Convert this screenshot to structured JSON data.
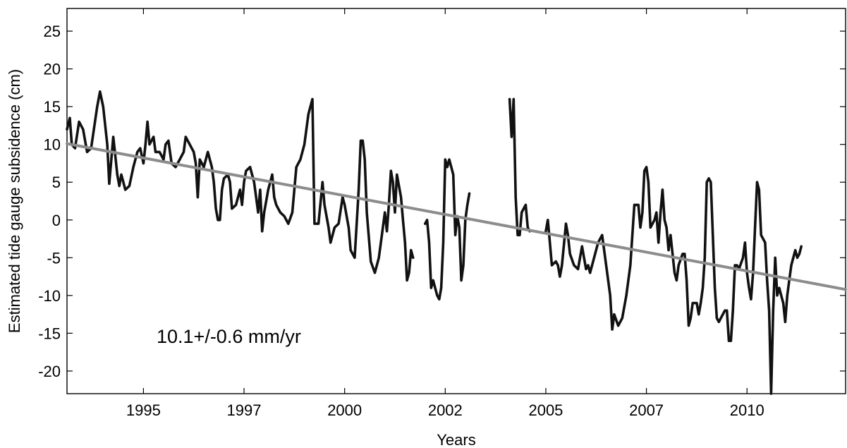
{
  "chart_data": {
    "type": "line",
    "title": "",
    "xlabel": "Years",
    "ylabel": "Estimated tide gauge subsidence (cm)",
    "xlim": [
      1993.1,
      2012.45
    ],
    "ylim": [
      -23,
      28
    ],
    "x_ticks": [
      1995,
      1997.5,
      2000,
      2002.5,
      2005,
      2007.5,
      2010
    ],
    "x_tick_labels": [
      "1995",
      "1997",
      "2000",
      "2002",
      "2005",
      "2007",
      "2010"
    ],
    "y_ticks": [
      25,
      20,
      15,
      10,
      5,
      0,
      -5,
      -10,
      -15,
      -20
    ],
    "y_tick_labels": [
      "25",
      "20",
      "15",
      "10",
      "5",
      "0",
      "-5",
      "-10",
      "-15",
      "-20"
    ],
    "grid": false,
    "annotation": "10.1+/-0.6 mm/yr",
    "series": [
      {
        "color": "#111111",
        "segments": [
          [
            [
              1993.1,
              12
            ],
            [
              1993.17,
              13.5
            ],
            [
              1993.22,
              10
            ],
            [
              1993.3,
              9.5
            ],
            [
              1993.4,
              13
            ],
            [
              1993.5,
              12
            ],
            [
              1993.6,
              9
            ],
            [
              1993.7,
              9.5
            ],
            [
              1993.85,
              15
            ],
            [
              1993.92,
              17
            ],
            [
              1994.0,
              15
            ],
            [
              1994.1,
              10
            ],
            [
              1994.15,
              4.8
            ],
            [
              1994.25,
              11
            ],
            [
              1994.3,
              8.5
            ],
            [
              1994.35,
              6
            ],
            [
              1994.4,
              4.5
            ],
            [
              1994.45,
              6
            ],
            [
              1994.5,
              5
            ],
            [
              1994.55,
              4
            ],
            [
              1994.65,
              4.5
            ],
            [
              1994.75,
              7
            ],
            [
              1994.85,
              9
            ],
            [
              1994.92,
              9.5
            ],
            [
              1995.0,
              7.5
            ],
            [
              1995.05,
              10
            ],
            [
              1995.1,
              13
            ],
            [
              1995.15,
              10
            ],
            [
              1995.25,
              11
            ],
            [
              1995.3,
              9
            ],
            [
              1995.4,
              9
            ],
            [
              1995.5,
              8
            ],
            [
              1995.55,
              10
            ],
            [
              1995.62,
              10.5
            ],
            [
              1995.7,
              7.5
            ],
            [
              1995.8,
              7
            ],
            [
              1995.9,
              8
            ],
            [
              1996.0,
              9
            ],
            [
              1996.05,
              11
            ],
            [
              1996.15,
              10
            ],
            [
              1996.25,
              9
            ],
            [
              1996.3,
              7.5
            ],
            [
              1996.35,
              3
            ],
            [
              1996.4,
              8
            ],
            [
              1996.5,
              7
            ],
            [
              1996.6,
              9
            ],
            [
              1996.7,
              7
            ],
            [
              1996.75,
              5
            ],
            [
              1996.8,
              1.5
            ],
            [
              1996.85,
              0
            ],
            [
              1996.9,
              0
            ],
            [
              1996.95,
              4
            ],
            [
              1997.0,
              5.5
            ],
            [
              1997.1,
              6
            ],
            [
              1997.15,
              5
            ],
            [
              1997.2,
              1.5
            ],
            [
              1997.3,
              2
            ],
            [
              1997.4,
              4
            ],
            [
              1997.45,
              2
            ],
            [
              1997.5,
              5
            ],
            [
              1997.55,
              6.5
            ],
            [
              1997.65,
              7
            ],
            [
              1997.75,
              5
            ],
            [
              1997.8,
              3
            ],
            [
              1997.85,
              1
            ],
            [
              1997.9,
              4
            ],
            [
              1997.95,
              -1.5
            ],
            [
              1998.0,
              1
            ],
            [
              1998.1,
              4
            ],
            [
              1998.2,
              6
            ],
            [
              1998.25,
              3
            ],
            [
              1998.3,
              2
            ],
            [
              1998.4,
              1
            ],
            [
              1998.5,
              0.5
            ],
            [
              1998.6,
              -0.5
            ],
            [
              1998.7,
              1
            ],
            [
              1998.8,
              7
            ],
            [
              1998.9,
              8
            ],
            [
              1999.0,
              10
            ],
            [
              1999.1,
              14
            ],
            [
              1999.2,
              16
            ],
            [
              1999.25,
              -0.5
            ],
            [
              1999.3,
              -0.5
            ],
            [
              1999.35,
              -0.5
            ],
            [
              1999.45,
              5
            ],
            [
              1999.5,
              2
            ],
            [
              1999.6,
              -1
            ],
            [
              1999.65,
              -3
            ],
            [
              1999.75,
              -1
            ],
            [
              1999.85,
              -0.5
            ],
            [
              1999.95,
              3
            ],
            [
              2000.0,
              2
            ],
            [
              2000.1,
              -1
            ],
            [
              2000.15,
              -4
            ],
            [
              2000.25,
              -5
            ],
            [
              2000.35,
              4
            ],
            [
              2000.4,
              10.5
            ],
            [
              2000.45,
              10.5
            ],
            [
              2000.5,
              8
            ],
            [
              2000.55,
              1
            ],
            [
              2000.65,
              -5.5
            ],
            [
              2000.75,
              -7
            ],
            [
              2000.85,
              -5
            ],
            [
              2000.95,
              -1
            ],
            [
              2001.0,
              1
            ],
            [
              2001.05,
              -1.5
            ],
            [
              2001.1,
              2
            ],
            [
              2001.15,
              6.5
            ],
            [
              2001.2,
              5
            ],
            [
              2001.25,
              1
            ],
            [
              2001.3,
              6
            ],
            [
              2001.35,
              4.5
            ],
            [
              2001.4,
              3
            ],
            [
              2001.45,
              0
            ],
            [
              2001.5,
              -3
            ],
            [
              2001.55,
              -8
            ],
            [
              2001.6,
              -7
            ],
            [
              2001.65,
              -4
            ],
            [
              2001.7,
              -5
            ]
          ],
          [
            [
              2002.0,
              -0.5
            ],
            [
              2002.05,
              0
            ],
            [
              2002.1,
              -3
            ],
            [
              2002.15,
              -9
            ],
            [
              2002.2,
              -8
            ],
            [
              2002.25,
              -9
            ],
            [
              2002.3,
              -10
            ],
            [
              2002.35,
              -10.5
            ],
            [
              2002.4,
              -9
            ],
            [
              2002.45,
              -3
            ],
            [
              2002.5,
              8
            ],
            [
              2002.55,
              7
            ],
            [
              2002.6,
              8
            ],
            [
              2002.65,
              7
            ],
            [
              2002.7,
              6
            ],
            [
              2002.75,
              -2
            ],
            [
              2002.8,
              0.5
            ],
            [
              2002.85,
              -1
            ],
            [
              2002.9,
              -8
            ],
            [
              2002.95,
              -6
            ],
            [
              2003.0,
              0
            ],
            [
              2003.05,
              2
            ],
            [
              2003.1,
              3.5
            ]
          ],
          [
            [
              2004.1,
              16
            ],
            [
              2004.15,
              11
            ],
            [
              2004.2,
              16
            ],
            [
              2004.25,
              3
            ],
            [
              2004.3,
              -2
            ],
            [
              2004.35,
              -2
            ],
            [
              2004.4,
              1
            ],
            [
              2004.5,
              2
            ],
            [
              2004.55,
              -1
            ],
            [
              2004.6,
              -1.5
            ]
          ],
          [
            [
              2005.0,
              -1.5
            ],
            [
              2005.05,
              0
            ],
            [
              2005.1,
              -3
            ],
            [
              2005.15,
              -6
            ],
            [
              2005.25,
              -5.5
            ],
            [
              2005.3,
              -6
            ],
            [
              2005.35,
              -7.5
            ],
            [
              2005.4,
              -6
            ],
            [
              2005.5,
              -0.5
            ],
            [
              2005.55,
              -2
            ],
            [
              2005.6,
              -4.5
            ],
            [
              2005.7,
              -6
            ],
            [
              2005.8,
              -6.5
            ],
            [
              2005.9,
              -3.5
            ],
            [
              2005.95,
              -5
            ],
            [
              2006.0,
              -6.5
            ],
            [
              2006.05,
              -6
            ],
            [
              2006.1,
              -7
            ],
            [
              2006.2,
              -5
            ],
            [
              2006.3,
              -3
            ],
            [
              2006.4,
              -2
            ],
            [
              2006.5,
              -6
            ],
            [
              2006.6,
              -10
            ],
            [
              2006.65,
              -14.5
            ],
            [
              2006.7,
              -12.5
            ],
            [
              2006.8,
              -14
            ],
            [
              2006.9,
              -13
            ],
            [
              2007.0,
              -10
            ],
            [
              2007.1,
              -6
            ],
            [
              2007.2,
              2
            ],
            [
              2007.3,
              2
            ],
            [
              2007.35,
              -1
            ],
            [
              2007.4,
              1
            ],
            [
              2007.45,
              6.5
            ],
            [
              2007.5,
              7
            ],
            [
              2007.55,
              5
            ],
            [
              2007.6,
              -1
            ],
            [
              2007.7,
              0
            ],
            [
              2007.75,
              1
            ],
            [
              2007.8,
              -3
            ],
            [
              2007.85,
              1
            ],
            [
              2007.9,
              4
            ],
            [
              2007.95,
              0
            ],
            [
              2008.0,
              -1
            ],
            [
              2008.05,
              -4
            ],
            [
              2008.1,
              -2
            ],
            [
              2008.2,
              -7
            ],
            [
              2008.25,
              -8
            ],
            [
              2008.3,
              -6
            ],
            [
              2008.4,
              -4.5
            ],
            [
              2008.45,
              -4.5
            ],
            [
              2008.5,
              -8
            ],
            [
              2008.55,
              -14
            ],
            [
              2008.6,
              -13
            ],
            [
              2008.65,
              -11
            ],
            [
              2008.75,
              -11
            ],
            [
              2008.8,
              -12.5
            ],
            [
              2008.85,
              -11
            ],
            [
              2008.9,
              -9
            ],
            [
              2008.95,
              -5
            ],
            [
              2009.0,
              5
            ],
            [
              2009.05,
              5.5
            ],
            [
              2009.1,
              5
            ],
            [
              2009.2,
              -9
            ],
            [
              2009.25,
              -13
            ],
            [
              2009.3,
              -13.5
            ],
            [
              2009.35,
              -13
            ],
            [
              2009.45,
              -12
            ],
            [
              2009.5,
              -12
            ],
            [
              2009.55,
              -16
            ],
            [
              2009.6,
              -16
            ],
            [
              2009.65,
              -12
            ],
            [
              2009.7,
              -6
            ],
            [
              2009.75,
              -6
            ],
            [
              2009.8,
              -6.5
            ],
            [
              2009.9,
              -5
            ],
            [
              2009.95,
              -3
            ],
            [
              2010.0,
              -7
            ],
            [
              2010.05,
              -9
            ],
            [
              2010.1,
              -10.5
            ],
            [
              2010.15,
              -7
            ],
            [
              2010.2,
              -1
            ],
            [
              2010.25,
              5
            ],
            [
              2010.3,
              4
            ],
            [
              2010.35,
              -2
            ],
            [
              2010.45,
              -3
            ],
            [
              2010.5,
              -8
            ],
            [
              2010.55,
              -12
            ],
            [
              2010.6,
              -23
            ],
            [
              2010.65,
              -12
            ],
            [
              2010.7,
              -5
            ],
            [
              2010.75,
              -10
            ],
            [
              2010.8,
              -9
            ],
            [
              2010.85,
              -10
            ],
            [
              2010.9,
              -11
            ],
            [
              2010.95,
              -13.5
            ],
            [
              2011.0,
              -10
            ],
            [
              2011.05,
              -8
            ],
            [
              2011.1,
              -6
            ],
            [
              2011.2,
              -4
            ],
            [
              2011.25,
              -5
            ],
            [
              2011.3,
              -4.5
            ],
            [
              2011.35,
              -3.5
            ]
          ]
        ]
      },
      {
        "color": "#8c8c8c",
        "segments": [
          [
            [
              1993.1,
              10.1
            ],
            [
              2012.45,
              -9.2
            ]
          ]
        ]
      }
    ]
  }
}
